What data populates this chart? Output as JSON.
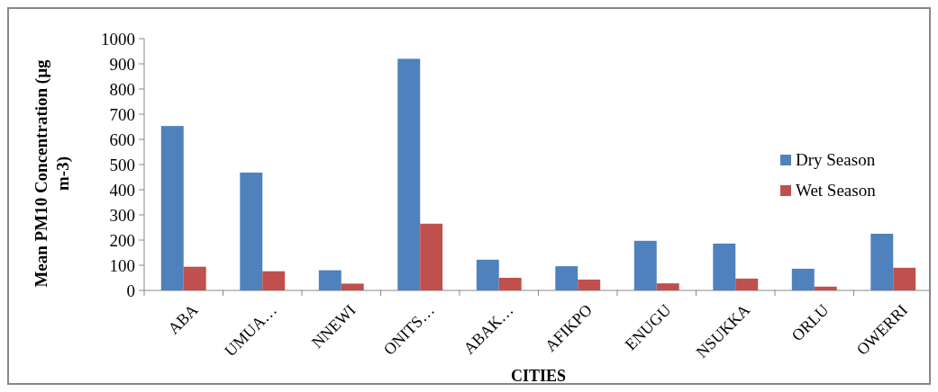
{
  "chart_data": {
    "type": "bar",
    "xlabel": "CITIES",
    "ylabel": "Mean PM10 Concentration (µg m-3)",
    "categories": [
      "ABA",
      "UMUA…",
      "NNEWI",
      "ONITS…",
      "ABAK…",
      "AFIKPO",
      "ENUGU",
      "NSUKKA",
      "ORLU",
      "OWERRI"
    ],
    "series": [
      {
        "name": "Dry Season",
        "color": "#4f81bd",
        "values": [
          653,
          468,
          80,
          920,
          122,
          96,
          197,
          186,
          86,
          225
        ]
      },
      {
        "name": "Wet Season",
        "color": "#c0504d",
        "values": [
          94,
          76,
          27,
          265,
          50,
          43,
          28,
          47,
          15,
          90
        ]
      }
    ],
    "ylim": [
      0,
      1000
    ],
    "yticks": [
      0,
      100,
      200,
      300,
      400,
      500,
      600,
      700,
      800,
      900,
      1000
    ],
    "grid": false,
    "legend": "right"
  }
}
